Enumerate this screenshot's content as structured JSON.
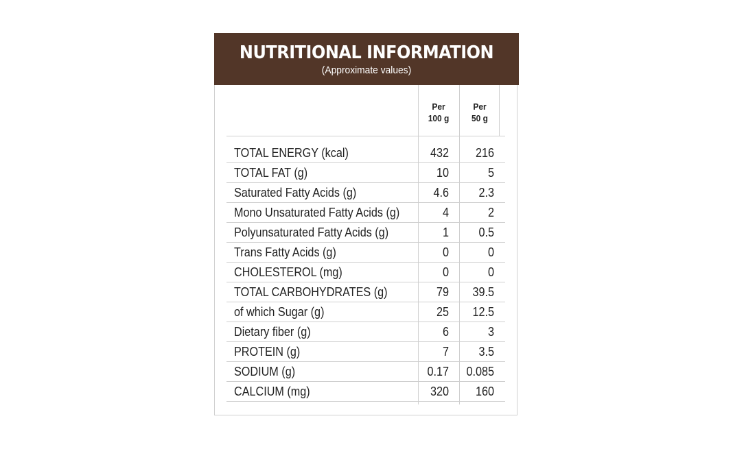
{
  "header": {
    "title": "NUTRITIONAL INFORMATION",
    "subtitle": "(Approximate values)",
    "background_color": "#523628"
  },
  "columns": {
    "per_100g": [
      "Per",
      "100 g"
    ],
    "per_50g": [
      "Per",
      "50 g"
    ]
  },
  "rows": [
    {
      "label": "TOTAL ENERGY (kcal)",
      "per_100g": "432",
      "per_50g": "216"
    },
    {
      "label": "TOTAL FAT (g)",
      "per_100g": "10",
      "per_50g": "5"
    },
    {
      "label": "Saturated Fatty Acids (g)",
      "per_100g": "4.6",
      "per_50g": "2.3"
    },
    {
      "label": "Mono Unsaturated Fatty Acids (g)",
      "per_100g": "4",
      "per_50g": "2"
    },
    {
      "label": "Polyunsaturated Fatty Acids (g)",
      "per_100g": "1",
      "per_50g": "0.5"
    },
    {
      "label": "Trans Fatty Acids (g)",
      "per_100g": "0",
      "per_50g": "0"
    },
    {
      "label": "CHOLESTEROL (mg)",
      "per_100g": "0",
      "per_50g": "0"
    },
    {
      "label": "TOTAL CARBOHYDRATES (g)",
      "per_100g": "79",
      "per_50g": "39.5"
    },
    {
      "label": "of which Sugar (g)",
      "per_100g": "25",
      "per_50g": "12.5"
    },
    {
      "label": "Dietary fiber (g)",
      "per_100g": "6",
      "per_50g": "3"
    },
    {
      "label": "PROTEIN (g)",
      "per_100g": "7",
      "per_50g": "3.5"
    },
    {
      "label": "SODIUM (g)",
      "per_100g": "0.17",
      "per_50g": "0.085"
    },
    {
      "label": "CALCIUM (mg)",
      "per_100g": "320",
      "per_50g": "160"
    }
  ]
}
